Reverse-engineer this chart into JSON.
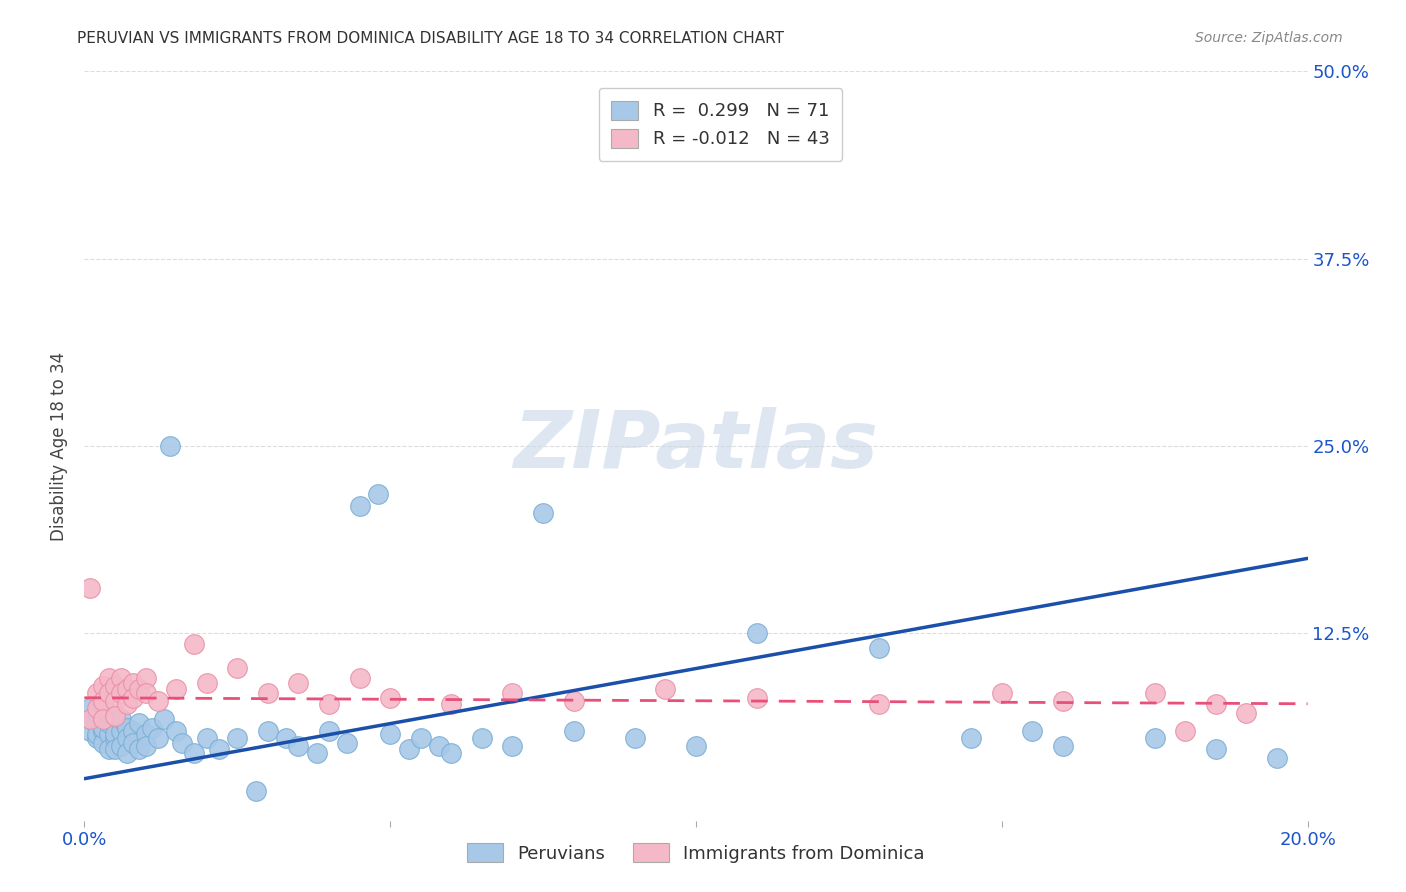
{
  "title": "PERUVIAN VS IMMIGRANTS FROM DOMINICA DISABILITY AGE 18 TO 34 CORRELATION CHART",
  "source": "Source: ZipAtlas.com",
  "ylabel": "Disability Age 18 to 34",
  "xlim": [
    0.0,
    0.2
  ],
  "ylim": [
    0.0,
    0.5
  ],
  "xticks": [
    0.0,
    0.05,
    0.1,
    0.15,
    0.2
  ],
  "xtick_labels": [
    "0.0%",
    "",
    "",
    "",
    "20.0%"
  ],
  "yticks": [
    0.0,
    0.125,
    0.25,
    0.375,
    0.5
  ],
  "ytick_labels_right": [
    "",
    "12.5%",
    "25.0%",
    "37.5%",
    "50.0%"
  ],
  "blue_R": 0.299,
  "blue_N": 71,
  "pink_R": -0.012,
  "pink_N": 43,
  "blue_color": "#a8c8e8",
  "blue_edge_color": "#7aaed4",
  "blue_line_color": "#1a4faa",
  "pink_color": "#f5b8c8",
  "pink_edge_color": "#e890a8",
  "pink_line_color": "#e8507a",
  "watermark_color": "#c8d8e8",
  "grid_color": "#dddddd",
  "blue_line_x": [
    0.0,
    0.2
  ],
  "blue_line_y": [
    0.028,
    0.175
  ],
  "pink_line_x": [
    0.0,
    0.2
  ],
  "pink_line_y": [
    0.082,
    0.078
  ],
  "blue_points_x": [
    0.001,
    0.001,
    0.001,
    0.002,
    0.002,
    0.002,
    0.002,
    0.003,
    0.003,
    0.003,
    0.003,
    0.003,
    0.004,
    0.004,
    0.004,
    0.004,
    0.005,
    0.005,
    0.005,
    0.005,
    0.005,
    0.006,
    0.006,
    0.006,
    0.007,
    0.007,
    0.007,
    0.008,
    0.008,
    0.009,
    0.009,
    0.01,
    0.01,
    0.011,
    0.012,
    0.013,
    0.014,
    0.015,
    0.016,
    0.018,
    0.02,
    0.022,
    0.025,
    0.028,
    0.03,
    0.033,
    0.035,
    0.038,
    0.04,
    0.043,
    0.045,
    0.048,
    0.05,
    0.053,
    0.055,
    0.058,
    0.06,
    0.065,
    0.07,
    0.075,
    0.08,
    0.09,
    0.1,
    0.11,
    0.13,
    0.145,
    0.155,
    0.16,
    0.175,
    0.185,
    0.195
  ],
  "blue_points_y": [
    0.06,
    0.068,
    0.075,
    0.055,
    0.065,
    0.072,
    0.058,
    0.06,
    0.068,
    0.075,
    0.052,
    0.062,
    0.058,
    0.065,
    0.072,
    0.048,
    0.055,
    0.063,
    0.07,
    0.058,
    0.048,
    0.06,
    0.068,
    0.05,
    0.062,
    0.055,
    0.045,
    0.06,
    0.052,
    0.065,
    0.048,
    0.058,
    0.05,
    0.062,
    0.055,
    0.068,
    0.25,
    0.06,
    0.052,
    0.045,
    0.055,
    0.048,
    0.055,
    0.02,
    0.06,
    0.055,
    0.05,
    0.045,
    0.06,
    0.052,
    0.21,
    0.218,
    0.058,
    0.048,
    0.055,
    0.05,
    0.045,
    0.055,
    0.05,
    0.205,
    0.06,
    0.055,
    0.05,
    0.125,
    0.115,
    0.055,
    0.06,
    0.05,
    0.055,
    0.048,
    0.042
  ],
  "pink_points_x": [
    0.001,
    0.001,
    0.002,
    0.002,
    0.003,
    0.003,
    0.003,
    0.004,
    0.004,
    0.005,
    0.005,
    0.005,
    0.006,
    0.006,
    0.007,
    0.007,
    0.008,
    0.008,
    0.009,
    0.01,
    0.01,
    0.012,
    0.015,
    0.018,
    0.02,
    0.025,
    0.03,
    0.035,
    0.04,
    0.045,
    0.05,
    0.06,
    0.07,
    0.08,
    0.095,
    0.11,
    0.13,
    0.15,
    0.16,
    0.175,
    0.18,
    0.185,
    0.19
  ],
  "pink_points_y": [
    0.155,
    0.068,
    0.085,
    0.075,
    0.09,
    0.08,
    0.068,
    0.095,
    0.085,
    0.09,
    0.08,
    0.07,
    0.095,
    0.085,
    0.088,
    0.078,
    0.092,
    0.082,
    0.088,
    0.095,
    0.085,
    0.08,
    0.088,
    0.118,
    0.092,
    0.102,
    0.085,
    0.092,
    0.078,
    0.095,
    0.082,
    0.078,
    0.085,
    0.08,
    0.088,
    0.082,
    0.078,
    0.085,
    0.08,
    0.085,
    0.06,
    0.078,
    0.072
  ]
}
